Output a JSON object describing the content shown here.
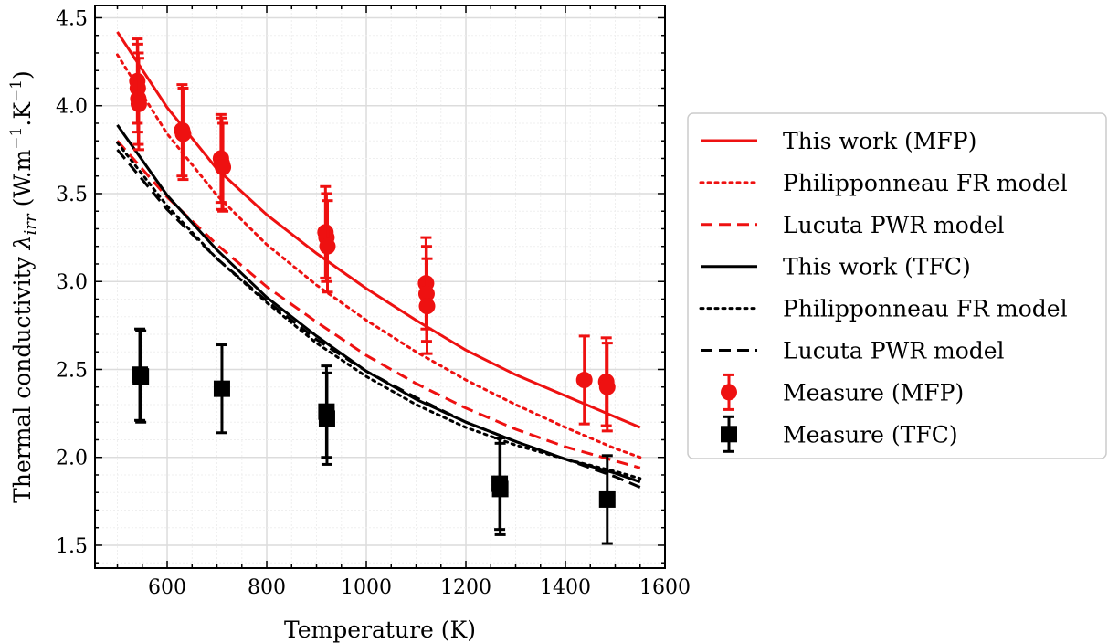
{
  "chart_data": {
    "type": "line",
    "xlabel": "Temperature (K)",
    "ylabel_prefix": "Thermal conductivity ",
    "ylabel_symbol": "λ",
    "ylabel_subscript": "irr",
    "ylabel_units_parts": [
      " (W.m",
      "−1",
      ".K",
      "−1",
      ")"
    ],
    "xlim": [
      455,
      1600
    ],
    "ylim": [
      1.37,
      4.57
    ],
    "xticks": [
      600,
      800,
      1000,
      1200,
      1400,
      1600
    ],
    "xtick_labels": [
      "600",
      "800",
      "1000",
      "1200",
      "1400",
      "1600"
    ],
    "yticks": [
      1.5,
      2.0,
      2.5,
      3.0,
      3.5,
      4.0,
      4.5
    ],
    "ytick_labels": [
      "1.5",
      "2.0",
      "2.5",
      "3.0",
      "3.5",
      "4.0",
      "4.5"
    ],
    "grid": true,
    "legend_position": "outside-right",
    "series": [
      {
        "name": "This work (MFP)",
        "color": "#ee1111",
        "style": "solid",
        "x": [
          500,
          600,
          700,
          800,
          900,
          1000,
          1100,
          1200,
          1300,
          1400,
          1500,
          1550
        ],
        "y": [
          4.42,
          3.99,
          3.64,
          3.38,
          3.16,
          2.96,
          2.78,
          2.61,
          2.47,
          2.35,
          2.23,
          2.17
        ]
      },
      {
        "name": "Philipponneau FR model",
        "color": "#ee1111",
        "style": "dotted",
        "x": [
          500,
          600,
          700,
          800,
          900,
          1000,
          1100,
          1200,
          1300,
          1400,
          1500,
          1550
        ],
        "y": [
          4.29,
          3.84,
          3.49,
          3.21,
          2.98,
          2.78,
          2.6,
          2.44,
          2.3,
          2.17,
          2.05,
          2.0
        ]
      },
      {
        "name": "Lucuta PWR model",
        "color": "#ee1111",
        "style": "dashed",
        "x": [
          500,
          600,
          700,
          800,
          900,
          1000,
          1100,
          1200,
          1300,
          1400,
          1500,
          1550
        ],
        "y": [
          3.8,
          3.48,
          3.21,
          2.97,
          2.77,
          2.58,
          2.42,
          2.28,
          2.16,
          2.06,
          1.98,
          1.94
        ]
      },
      {
        "name": "This work (TFC)",
        "color": "#000000",
        "style": "solid",
        "x": [
          500,
          600,
          700,
          800,
          900,
          1000,
          1100,
          1200,
          1300,
          1400,
          1500,
          1550
        ],
        "y": [
          3.89,
          3.49,
          3.18,
          2.91,
          2.69,
          2.49,
          2.33,
          2.2,
          2.09,
          1.99,
          1.91,
          1.86
        ]
      },
      {
        "name": "Philipponneau FR model",
        "color": "#000000",
        "style": "dotted",
        "x": [
          500,
          600,
          700,
          800,
          900,
          1000,
          1100,
          1200,
          1300,
          1400,
          1500,
          1550
        ],
        "y": [
          3.79,
          3.43,
          3.13,
          2.88,
          2.65,
          2.46,
          2.3,
          2.17,
          2.07,
          1.99,
          1.92,
          1.88
        ]
      },
      {
        "name": "Lucuta PWR model",
        "color": "#000000",
        "style": "dashed",
        "x": [
          500,
          600,
          700,
          800,
          900,
          1000,
          1100,
          1200,
          1300,
          1400,
          1500,
          1550
        ],
        "y": [
          3.75,
          3.41,
          3.13,
          2.89,
          2.67,
          2.49,
          2.34,
          2.2,
          2.09,
          1.99,
          1.89,
          1.83
        ]
      }
    ],
    "measurements": [
      {
        "name": "Measure (MFP)",
        "color": "#ee1111",
        "marker": "circle",
        "points": [
          {
            "x": 540,
            "y": 4.14,
            "err": 0.24
          },
          {
            "x": 541,
            "y": 4.1,
            "err": 0.25
          },
          {
            "x": 542,
            "y": 4.04,
            "err": 0.26
          },
          {
            "x": 543,
            "y": 4.01,
            "err": 0.26
          },
          {
            "x": 630,
            "y": 3.86,
            "err": 0.26
          },
          {
            "x": 632,
            "y": 3.84,
            "err": 0.26
          },
          {
            "x": 708,
            "y": 3.7,
            "err": 0.25
          },
          {
            "x": 710,
            "y": 3.67,
            "err": 0.26
          },
          {
            "x": 712,
            "y": 3.65,
            "err": 0.25
          },
          {
            "x": 918,
            "y": 3.28,
            "err": 0.26
          },
          {
            "x": 920,
            "y": 3.25,
            "err": 0.25
          },
          {
            "x": 922,
            "y": 3.2,
            "err": 0.26
          },
          {
            "x": 1120,
            "y": 2.99,
            "err": 0.26
          },
          {
            "x": 1121,
            "y": 2.93,
            "err": 0.27
          },
          {
            "x": 1122,
            "y": 2.86,
            "err": 0.27
          },
          {
            "x": 1438,
            "y": 2.44,
            "err": 0.25
          },
          {
            "x": 1482,
            "y": 2.43,
            "err": 0.25
          },
          {
            "x": 1484,
            "y": 2.4,
            "err": 0.25
          }
        ]
      },
      {
        "name": "Measure (TFC)",
        "color": "#000000",
        "marker": "square",
        "points": [
          {
            "x": 545,
            "y": 2.47,
            "err": 0.26
          },
          {
            "x": 547,
            "y": 2.46,
            "err": 0.26
          },
          {
            "x": 710,
            "y": 2.39,
            "err": 0.25
          },
          {
            "x": 920,
            "y": 2.26,
            "err": 0.26
          },
          {
            "x": 921,
            "y": 2.22,
            "err": 0.26
          },
          {
            "x": 1268,
            "y": 1.85,
            "err": 0.26
          },
          {
            "x": 1269,
            "y": 1.82,
            "err": 0.26
          },
          {
            "x": 1484,
            "y": 1.76,
            "err": 0.25
          }
        ]
      }
    ]
  }
}
